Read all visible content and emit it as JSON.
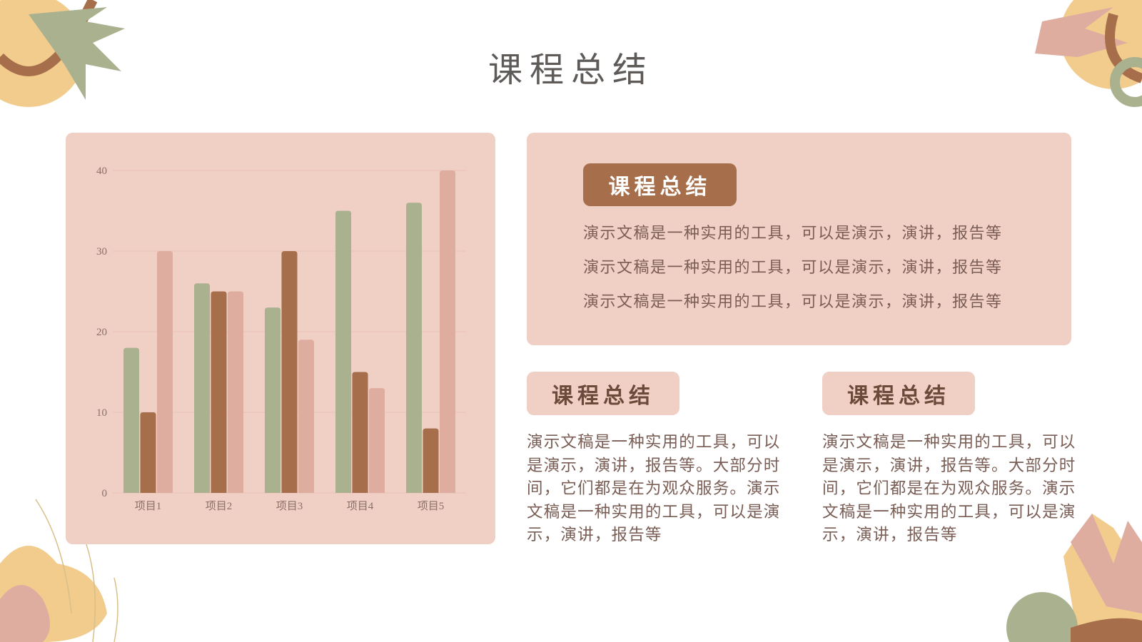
{
  "title": "课程总结",
  "chart_data": {
    "type": "bar",
    "categories": [
      "项目1",
      "项目2",
      "项目3",
      "项目4",
      "项目5"
    ],
    "series": [
      {
        "color": "#a9b18f",
        "values": [
          18,
          26,
          23,
          35,
          36
        ]
      },
      {
        "color": "#a66e4a",
        "values": [
          10,
          25,
          30,
          15,
          8
        ]
      },
      {
        "color": "#dfada0",
        "values": [
          30,
          25,
          19,
          13,
          40
        ]
      }
    ],
    "ylim": [
      0,
      40
    ],
    "yticks": [
      0,
      10,
      20,
      30,
      40
    ],
    "grid": true
  },
  "panels": [
    {
      "heading": "课程总结",
      "lines": [
        "演示文稿是一种实用的工具，可以是演示，演讲，报告等",
        "演示文稿是一种实用的工具，可以是演示，演讲，报告等",
        "演示文稿是一种实用的工具，可以是演示，演讲，报告等"
      ]
    },
    {
      "heading": "课程总结",
      "text": "演示文稿是一种实用的工具，可以是演示，演讲，报告等。大部分时间，它们都是在为观众服务。演示文稿是一种实用的工具，可以是演示，演讲，报告等"
    },
    {
      "heading": "课程总结",
      "text": "演示文稿是一种实用的工具，可以是演示，演讲，报告等。大部分时间，它们都是在为观众服务。演示文稿是一种实用的工具，可以是演示，演讲，报告等"
    }
  ]
}
